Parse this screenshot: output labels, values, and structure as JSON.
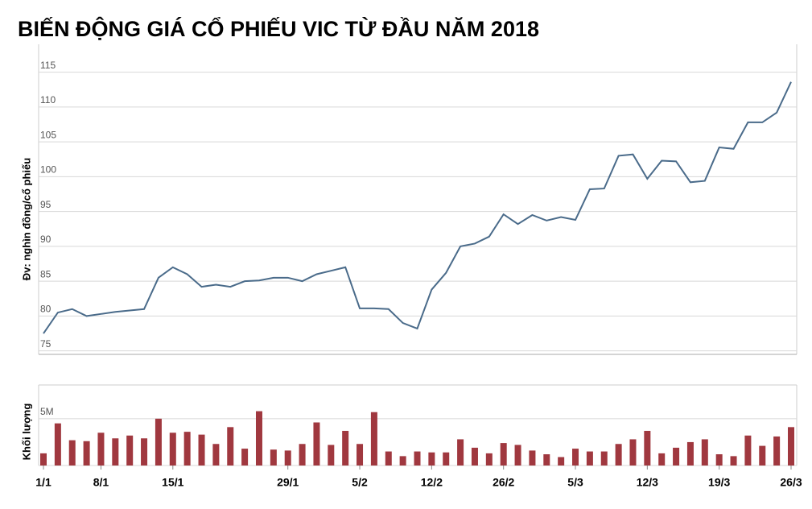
{
  "chart_data": [
    {
      "type": "line",
      "title": "BIẾN ĐỘNG GIÁ CỔ PHIẾU VIC TỪ ĐẦU NĂM 2018",
      "y_label": "Đv: nghìn đồng/cổ phiếu",
      "color": "#4a6b8a",
      "grid": true,
      "values": [
        77.5,
        80.5,
        81,
        80,
        80.3,
        80.6,
        80.8,
        81,
        85.5,
        87,
        86,
        84.2,
        84.5,
        84.2,
        85,
        85.1,
        85.5,
        85.5,
        85,
        86,
        86.5,
        87,
        81.1,
        81.1,
        81,
        79,
        78.2,
        83.8,
        86.2,
        90,
        90.4,
        91.4,
        94.6,
        93.2,
        94.5,
        93.7,
        94.2,
        93.8,
        98.2,
        98.3,
        103,
        103.2,
        99.7,
        102.3,
        102.2,
        99.2,
        99.4,
        104.2,
        104,
        107.8,
        107.8,
        109.2,
        113.6
      ],
      "ylim": [
        74.5,
        119
      ],
      "yticks": [
        75,
        80,
        85,
        90,
        95,
        100,
        105,
        110,
        115
      ]
    },
    {
      "type": "bar",
      "y_label": "Khối lượng",
      "color": "#a0383f",
      "grid": true,
      "categories": [
        "1/1",
        null,
        null,
        null,
        "8/1",
        null,
        null,
        null,
        null,
        "15/1",
        null,
        null,
        null,
        null,
        null,
        null,
        null,
        "29/1",
        null,
        null,
        null,
        null,
        "5/2",
        null,
        null,
        null,
        null,
        "12/2",
        null,
        null,
        null,
        null,
        "26/2",
        null,
        null,
        null,
        null,
        "5/3",
        null,
        null,
        null,
        null,
        "12/3",
        null,
        null,
        null,
        null,
        "19/3",
        null,
        null,
        null,
        null,
        "26/3"
      ],
      "values": [
        1300000,
        4500000,
        2700000,
        2600000,
        3500000,
        2900000,
        3200000,
        2900000,
        5000000,
        3500000,
        3600000,
        3300000,
        2300000,
        4100000,
        1800000,
        5800000,
        1700000,
        1600000,
        2300000,
        4600000,
        2200000,
        3700000,
        2300000,
        5700000,
        1500000,
        1000000,
        1500000,
        1400000,
        1400000,
        2800000,
        1900000,
        1300000,
        2400000,
        2200000,
        1600000,
        1200000,
        900000,
        1800000,
        1500000,
        1500000,
        2300000,
        2800000,
        3700000,
        1300000,
        1900000,
        2500000,
        2800000,
        1200000,
        1000000,
        3200000,
        2100000,
        3100000,
        4100000
      ],
      "ylim": [
        0,
        8600000
      ],
      "yticks": [
        0,
        {
          "value": 5000000,
          "label": "5M"
        }
      ]
    }
  ]
}
